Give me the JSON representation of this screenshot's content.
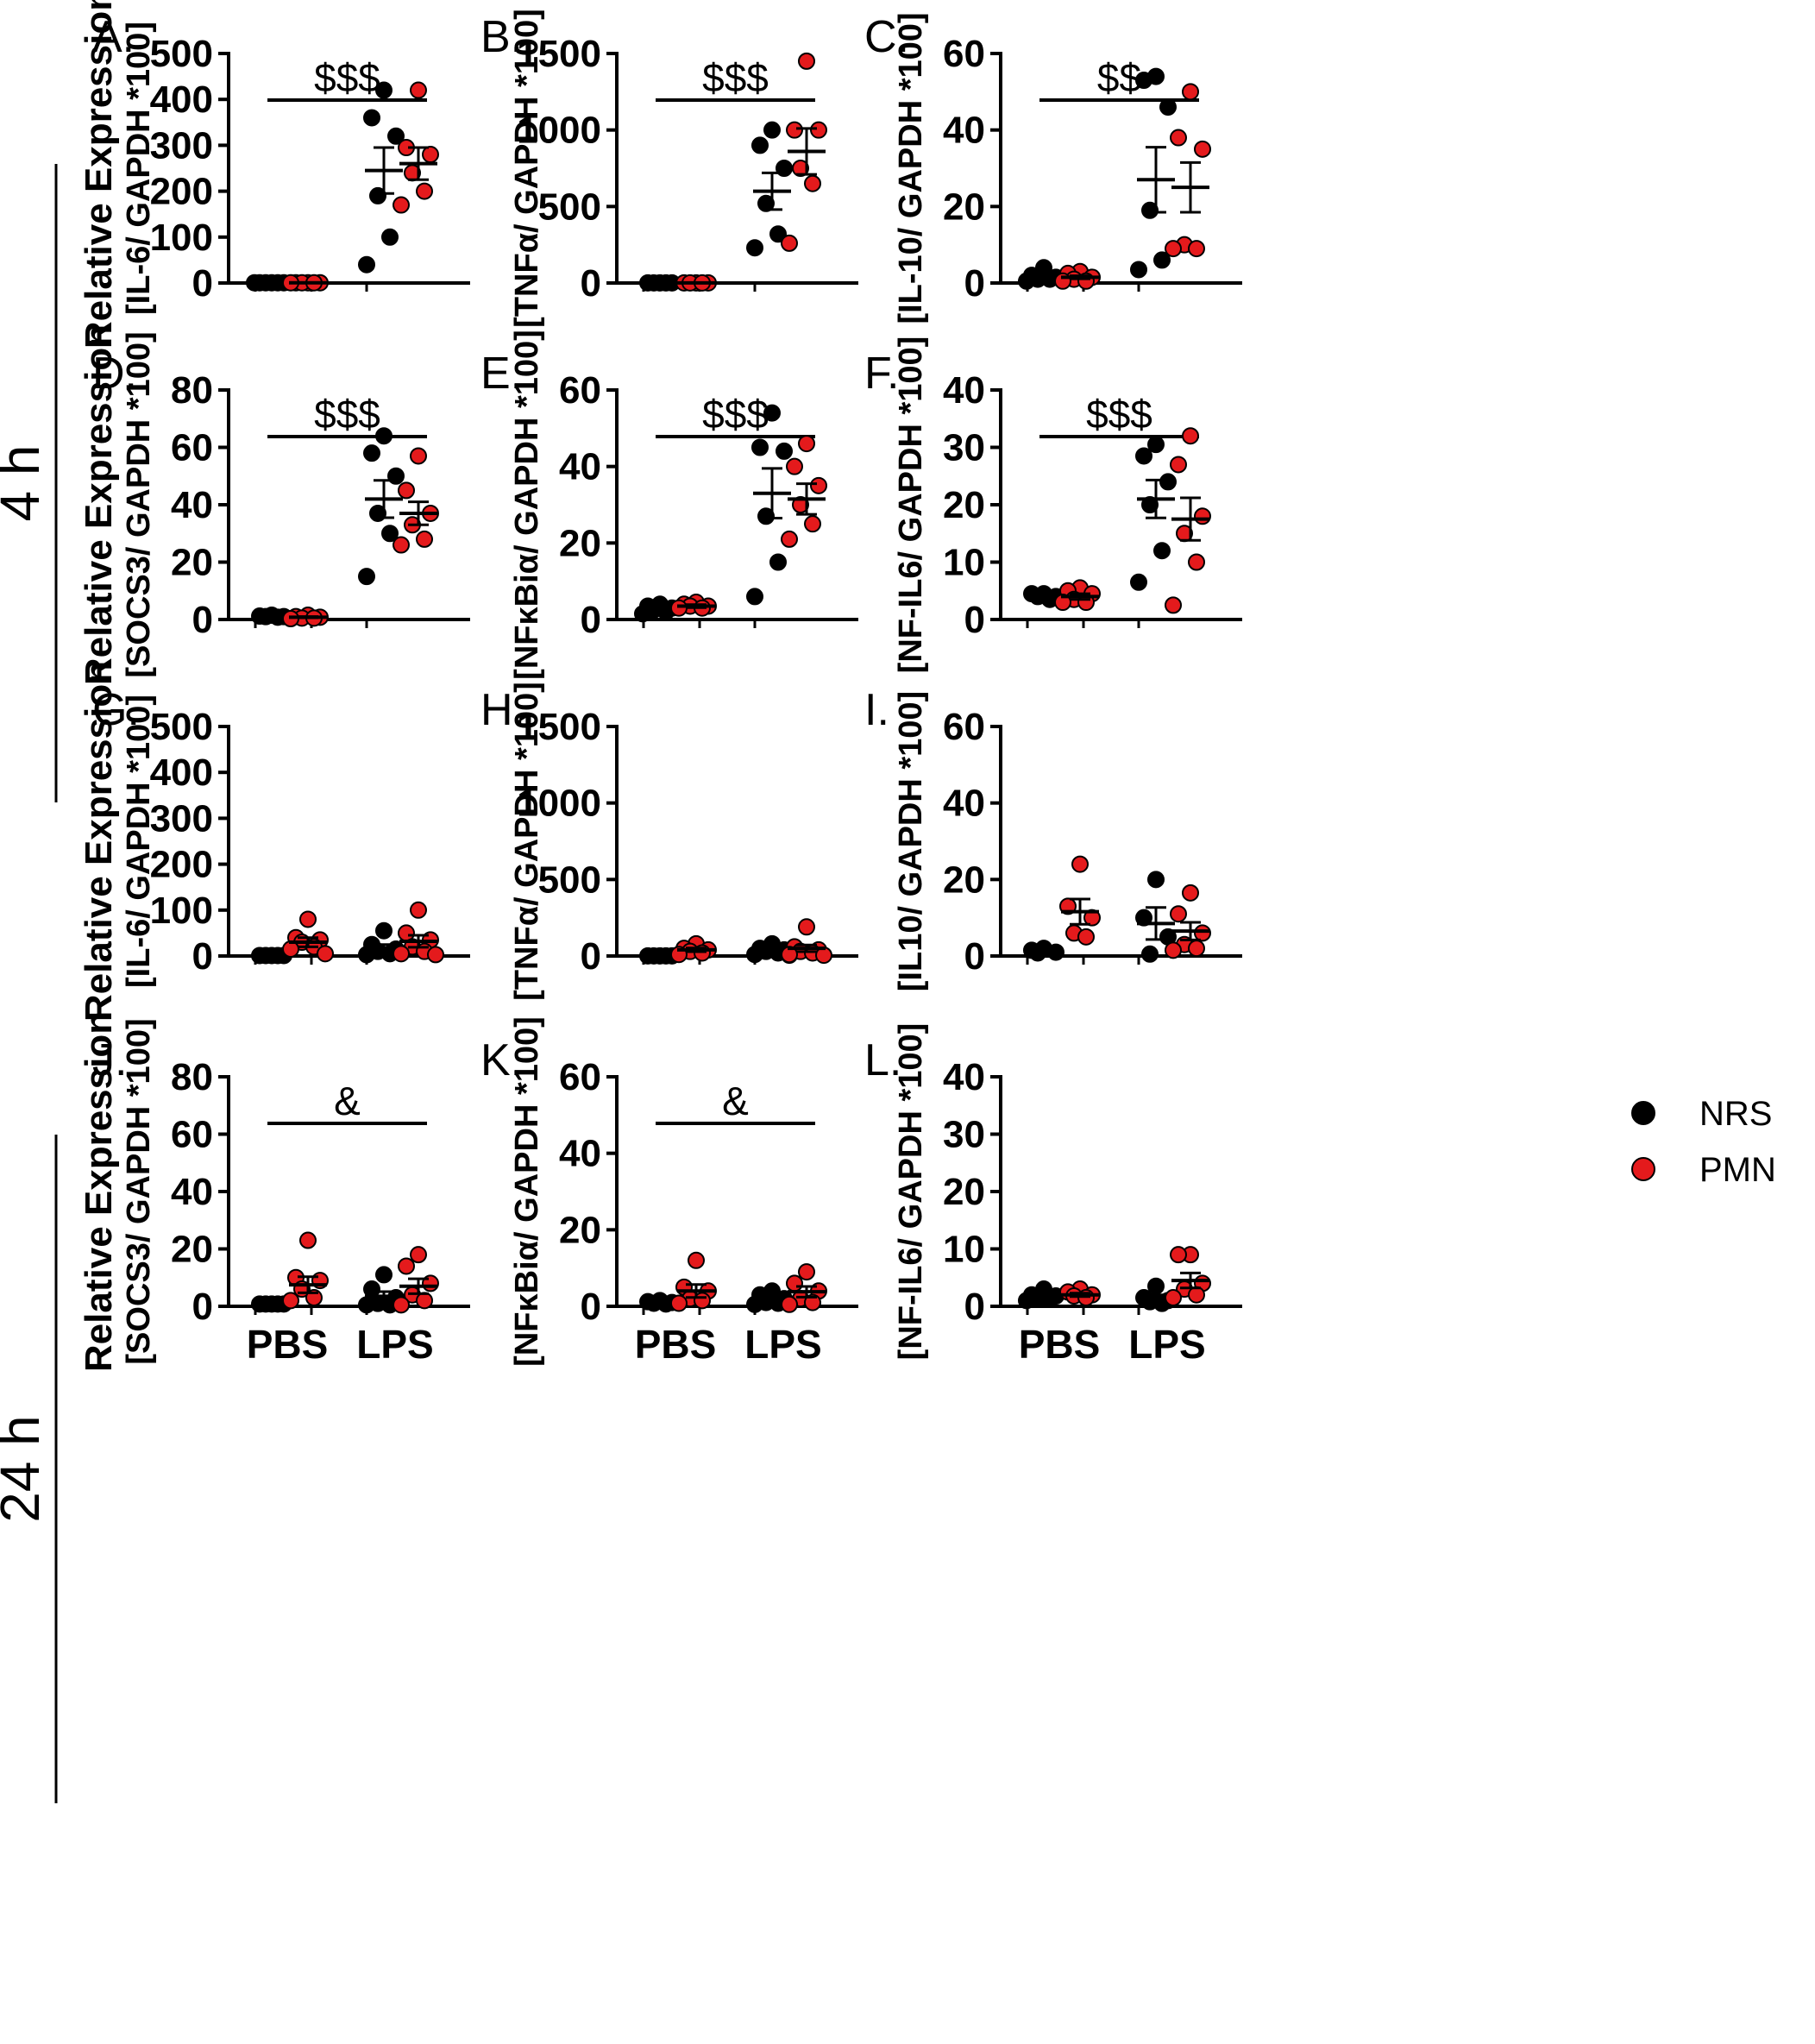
{
  "colors": {
    "NRS": "#000000",
    "PMN": "#e41a1c",
    "axis": "#000000",
    "background": "#ffffff"
  },
  "time_labels": [
    "4 h",
    "24 h"
  ],
  "shared_ylabel_top": "Relative Expression",
  "legend": [
    {
      "label": "NRS",
      "color": "#000000"
    },
    {
      "label": "PMN",
      "color": "#e41a1c"
    }
  ],
  "chart_data": [
    {
      "type": "scatter",
      "panel": "A.",
      "time": "4 h",
      "ylabel": "[IL-6/ GAPDH *100]",
      "ylim": [
        0,
        500
      ],
      "yticks": [
        "0",
        "100",
        "200",
        "300",
        "400",
        "500"
      ],
      "xlabels": [],
      "sig": {
        "text": "$$$",
        "from": 0,
        "to": 3
      },
      "groups": [
        {
          "series": "NRS",
          "condition": "PBS",
          "points": [
            0.5,
            0.5,
            0.5,
            0.5,
            0.5,
            0.5
          ],
          "mean": 0.5,
          "sem": 0.1
        },
        {
          "series": "PMN",
          "condition": "PBS",
          "points": [
            0.5,
            0.5,
            0.5,
            0.5,
            0.5,
            0.5
          ],
          "mean": 0.5,
          "sem": 0.1
        },
        {
          "series": "NRS",
          "condition": "LPS",
          "points": [
            420,
            360,
            320,
            190,
            100,
            40
          ],
          "mean": 245,
          "sem": 50
        },
        {
          "series": "PMN",
          "condition": "LPS",
          "points": [
            420,
            295,
            280,
            240,
            200,
            170
          ],
          "mean": 260,
          "sem": 35
        }
      ]
    },
    {
      "type": "scatter",
      "panel": "B.",
      "time": "4 h",
      "ylabel": "[TNFα/ GAPDH *100]",
      "ylim": [
        0,
        1500
      ],
      "yticks": [
        "0",
        "500",
        "1000",
        "1500"
      ],
      "xlabels": [],
      "sig": {
        "text": "$$$",
        "from": 0,
        "to": 3
      },
      "groups": [
        {
          "series": "NRS",
          "condition": "PBS",
          "points": [
            1,
            1,
            1,
            1,
            1
          ],
          "mean": 1,
          "sem": 0.3
        },
        {
          "series": "PMN",
          "condition": "PBS",
          "points": [
            1,
            1,
            1,
            1,
            1
          ],
          "mean": 1,
          "sem": 0.3
        },
        {
          "series": "NRS",
          "condition": "LPS",
          "points": [
            1000,
            900,
            750,
            520,
            320,
            230
          ],
          "mean": 600,
          "sem": 120
        },
        {
          "series": "PMN",
          "condition": "LPS",
          "points": [
            1450,
            1000,
            1000,
            750,
            650,
            260
          ],
          "mean": 860,
          "sem": 150
        }
      ]
    },
    {
      "type": "scatter",
      "panel": "C.",
      "time": "4 h",
      "ylabel": "[IL-10/ GAPDH *100]",
      "ylim": [
        0,
        60
      ],
      "yticks": [
        "0",
        "20",
        "40",
        "60"
      ],
      "xlabels": [],
      "sig": {
        "text": "$$",
        "from": 0,
        "to": 3
      },
      "groups": [
        {
          "series": "NRS",
          "condition": "PBS",
          "points": [
            4,
            2,
            1.5,
            1,
            1,
            0.5
          ],
          "mean": 1.7,
          "sem": 0.6
        },
        {
          "series": "PMN",
          "condition": "PBS",
          "points": [
            3,
            2.5,
            1.5,
            1,
            0.5,
            0.5
          ],
          "mean": 1.5,
          "sem": 0.4
        },
        {
          "series": "NRS",
          "condition": "LPS",
          "points": [
            54,
            53,
            46,
            19,
            6,
            3.5
          ],
          "mean": 27,
          "sem": 8.5
        },
        {
          "series": "PMN",
          "condition": "LPS",
          "points": [
            50,
            38,
            35,
            10,
            9,
            9
          ],
          "mean": 25,
          "sem": 6.5
        }
      ]
    },
    {
      "type": "scatter",
      "panel": "D.",
      "time": "4 h",
      "ylabel": "[SOCS3/ GAPDH *100]",
      "ylim": [
        0,
        80
      ],
      "yticks": [
        "0",
        "20",
        "40",
        "60",
        "80"
      ],
      "xlabels": [],
      "sig": {
        "text": "$$$",
        "from": 0,
        "to": 3
      },
      "groups": [
        {
          "series": "NRS",
          "condition": "PBS",
          "points": [
            1.5,
            1.2,
            1,
            1,
            0.8
          ],
          "mean": 1,
          "sem": 0.2
        },
        {
          "series": "PMN",
          "condition": "PBS",
          "points": [
            1.5,
            1,
            0.8,
            0.5,
            0.5,
            0.3
          ],
          "mean": 0.8,
          "sem": 0.2
        },
        {
          "series": "NRS",
          "condition": "LPS",
          "points": [
            64,
            58,
            50,
            37,
            30,
            15
          ],
          "mean": 42,
          "sem": 6.5
        },
        {
          "series": "PMN",
          "condition": "LPS",
          "points": [
            57,
            45,
            37,
            33,
            28,
            26
          ],
          "mean": 37,
          "sem": 4
        }
      ]
    },
    {
      "type": "scatter",
      "panel": "E.",
      "time": "4 h",
      "ylabel": "[NFκBiα/ GAPDH *100]",
      "ylim": [
        0,
        60
      ],
      "yticks": [
        "0",
        "20",
        "40",
        "60"
      ],
      "xlabels": [],
      "sig": {
        "text": "$$$",
        "from": 0,
        "to": 3
      },
      "groups": [
        {
          "series": "NRS",
          "condition": "PBS",
          "points": [
            4,
            3.5,
            3,
            2.5,
            2,
            1.5
          ],
          "mean": 3,
          "sem": 0.5
        },
        {
          "series": "PMN",
          "condition": "PBS",
          "points": [
            4.5,
            4,
            3.5,
            3.5,
            3,
            3
          ],
          "mean": 3.5,
          "sem": 0.4
        },
        {
          "series": "NRS",
          "condition": "LPS",
          "points": [
            54,
            45,
            44,
            27,
            15,
            6
          ],
          "mean": 33,
          "sem": 6.5
        },
        {
          "series": "PMN",
          "condition": "LPS",
          "points": [
            46,
            40,
            35,
            30,
            25,
            21
          ],
          "mean": 31.5,
          "sem": 4
        }
      ]
    },
    {
      "type": "scatter",
      "panel": "F.",
      "time": "4 h",
      "ylabel": "[NF-IL6/ GAPDH *100]",
      "ylim": [
        0,
        40
      ],
      "yticks": [
        "0",
        "10",
        "20",
        "30",
        "40"
      ],
      "xlabels": [],
      "sig": {
        "text": "$$$",
        "from": 0,
        "to": 3
      },
      "groups": [
        {
          "series": "NRS",
          "condition": "PBS",
          "points": [
            4.5,
            4.5,
            4,
            4,
            3.5
          ],
          "mean": 4.2,
          "sem": 0.3
        },
        {
          "series": "PMN",
          "condition": "PBS",
          "points": [
            5.5,
            5,
            4.5,
            3.5,
            3,
            3
          ],
          "mean": 4,
          "sem": 0.5
        },
        {
          "series": "NRS",
          "condition": "LPS",
          "points": [
            30.5,
            28.5,
            24,
            20,
            12,
            6.5
          ],
          "mean": 21,
          "sem": 3.3
        },
        {
          "series": "PMN",
          "condition": "LPS",
          "points": [
            32,
            27,
            18,
            15,
            10,
            2.5
          ],
          "mean": 17.5,
          "sem": 3.7
        }
      ]
    },
    {
      "type": "scatter",
      "panel": "G.",
      "time": "24 h",
      "ylabel": "[IL-6/ GAPDH *100]",
      "ylim": [
        0,
        500
      ],
      "yticks": [
        "0",
        "100",
        "200",
        "300",
        "400",
        "500"
      ],
      "xlabels": [],
      "sig": null,
      "groups": [
        {
          "series": "NRS",
          "condition": "PBS",
          "points": [
            1,
            1,
            1,
            1,
            1
          ],
          "mean": 1,
          "sem": 0.3
        },
        {
          "series": "PMN",
          "condition": "PBS",
          "points": [
            80,
            40,
            35,
            30,
            20,
            15,
            5
          ],
          "mean": 30,
          "sem": 10
        },
        {
          "series": "NRS",
          "condition": "LPS",
          "points": [
            55,
            25,
            15,
            10,
            5,
            3
          ],
          "mean": 17,
          "sem": 8
        },
        {
          "series": "PMN",
          "condition": "LPS",
          "points": [
            100,
            50,
            35,
            20,
            10,
            5,
            3
          ],
          "mean": 32,
          "sem": 13
        }
      ]
    },
    {
      "type": "scatter",
      "panel": "H.",
      "time": "24 h",
      "ylabel": "[TNFα/ GAPDH *100]",
      "ylim": [
        0,
        1500
      ],
      "yticks": [
        "0",
        "500",
        "1000",
        "1500"
      ],
      "xlabels": [],
      "sig": null,
      "groups": [
        {
          "series": "NRS",
          "condition": "PBS",
          "points": [
            1,
            1,
            1,
            1,
            1
          ],
          "mean": 1,
          "sem": 0.3
        },
        {
          "series": "PMN",
          "condition": "PBS",
          "points": [
            80,
            50,
            40,
            30,
            20,
            10
          ],
          "mean": 40,
          "sem": 12
        },
        {
          "series": "NRS",
          "condition": "LPS",
          "points": [
            80,
            50,
            40,
            30,
            20,
            10,
            5
          ],
          "mean": 35,
          "sem": 10
        },
        {
          "series": "PMN",
          "condition": "LPS",
          "points": [
            190,
            60,
            40,
            30,
            20,
            10,
            5
          ],
          "mean": 50,
          "sem": 22
        }
      ]
    },
    {
      "type": "scatter",
      "panel": "I.",
      "time": "24 h",
      "ylabel": "[IL10/ GAPDH *100]",
      "ylim": [
        0,
        60
      ],
      "yticks": [
        "0",
        "20",
        "40",
        "60"
      ],
      "xlabels": [],
      "sig": null,
      "groups": [
        {
          "series": "NRS",
          "condition": "PBS",
          "points": [
            2,
            1.5,
            1,
            0.8
          ],
          "mean": 1.3,
          "sem": 0.3
        },
        {
          "series": "PMN",
          "condition": "PBS",
          "points": [
            24,
            13,
            10,
            6,
            5
          ],
          "mean": 11.6,
          "sem": 3.3
        },
        {
          "series": "NRS",
          "condition": "LPS",
          "points": [
            20,
            10,
            5,
            0.5
          ],
          "mean": 8.5,
          "sem": 4.2
        },
        {
          "series": "PMN",
          "condition": "LPS",
          "points": [
            16.5,
            11,
            6,
            3,
            2,
            1.5
          ],
          "mean": 6.5,
          "sem": 2.3
        }
      ]
    },
    {
      "type": "scatter",
      "panel": "J.",
      "time": "24 h",
      "ylabel": "[SOCS3/ GAPDH *100]",
      "ylim": [
        0,
        80
      ],
      "yticks": [
        "0",
        "20",
        "40",
        "60",
        "80"
      ],
      "xlabels": [
        "PBS",
        "LPS"
      ],
      "sig": {
        "text": "&",
        "from": 0,
        "to": 3
      },
      "groups": [
        {
          "series": "NRS",
          "condition": "PBS",
          "points": [
            0.8,
            0.8,
            0.8,
            0.8,
            0.8
          ],
          "mean": 0.8,
          "sem": 0.1
        },
        {
          "series": "PMN",
          "condition": "PBS",
          "points": [
            23,
            10,
            9,
            6,
            3,
            2
          ],
          "mean": 7.5,
          "sem": 2.8
        },
        {
          "series": "NRS",
          "condition": "LPS",
          "points": [
            11,
            6,
            3,
            1,
            0.5,
            0.5
          ],
          "mean": 3.5,
          "sem": 1.6
        },
        {
          "series": "PMN",
          "condition": "LPS",
          "points": [
            18,
            14,
            8,
            4,
            2,
            0.5
          ],
          "mean": 7,
          "sem": 2.6
        }
      ]
    },
    {
      "type": "scatter",
      "panel": "K.",
      "time": "24 h",
      "ylabel": "[NFκBiα/ GAPDH *100]",
      "ylim": [
        0,
        60
      ],
      "yticks": [
        "0",
        "20",
        "40",
        "60"
      ],
      "xlabels": [
        "PBS",
        "LPS"
      ],
      "sig": {
        "text": "&",
        "from": 0,
        "to": 3
      },
      "groups": [
        {
          "series": "NRS",
          "condition": "PBS",
          "points": [
            1.5,
            1.2,
            1,
            0.8,
            0.6
          ],
          "mean": 1,
          "sem": 0.2
        },
        {
          "series": "PMN",
          "condition": "PBS",
          "points": [
            12,
            5,
            4,
            2,
            1.5,
            0.8
          ],
          "mean": 4,
          "sem": 1.7
        },
        {
          "series": "NRS",
          "condition": "LPS",
          "points": [
            4,
            3,
            2,
            1,
            0.8,
            0.5
          ],
          "mean": 1.8,
          "sem": 0.6
        },
        {
          "series": "PMN",
          "condition": "LPS",
          "points": [
            9,
            6,
            4,
            2,
            1,
            0.5
          ],
          "mean": 3.8,
          "sem": 1.4
        }
      ]
    },
    {
      "type": "scatter",
      "panel": "L.",
      "time": "24 h",
      "ylabel": "[NF-IL6/ GAPDH *100]",
      "ylim": [
        0,
        40
      ],
      "yticks": [
        "0",
        "10",
        "20",
        "30",
        "40"
      ],
      "xlabels": [
        "PBS",
        "LPS"
      ],
      "sig": null,
      "groups": [
        {
          "series": "NRS",
          "condition": "PBS",
          "points": [
            3,
            2,
            1.8,
            1.5,
            1.2,
            1
          ],
          "mean": 1.8,
          "sem": 0.3
        },
        {
          "series": "PMN",
          "condition": "PBS",
          "points": [
            3,
            2.5,
            2,
            1.8,
            1.5
          ],
          "mean": 2,
          "sem": 0.3
        },
        {
          "series": "NRS",
          "condition": "LPS",
          "points": [
            3.5,
            1.5,
            1,
            0.8,
            0.5
          ],
          "mean": 1.5,
          "sem": 0.5
        },
        {
          "series": "PMN",
          "condition": "LPS",
          "points": [
            9,
            9,
            4,
            3,
            2,
            1.5
          ],
          "mean": 4.5,
          "sem": 1.3
        }
      ]
    }
  ]
}
